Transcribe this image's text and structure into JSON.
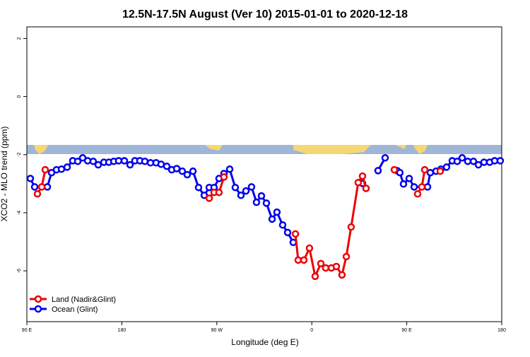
{
  "chart_data": {
    "type": "line",
    "title": "12.5N-17.5N August (Ver 10)   2015-01-01 to 2020-12-18",
    "x_label": "Longitude (deg E)",
    "y_label": "XCO2 - MLO trend (ppm)",
    "xlim": [
      90,
      540
    ],
    "xticks": [
      {
        "value": 90,
        "label": "90 E"
      },
      180,
      {
        "value": 270,
        "label": "90 W"
      },
      {
        "value": 360,
        "label": "0"
      },
      {
        "value": 450,
        "label": "90 E"
      },
      {
        "value": 540,
        "label": "180"
      }
    ],
    "ylim": [
      -7.75,
      2.4
    ],
    "yticks": [
      -6,
      -4,
      -2,
      0,
      2
    ],
    "legend": "bottom-left",
    "series": [
      {
        "name": "Ocean (Glint)",
        "color": "#0000ee",
        "x": [
          93.3,
          97.4,
          109.4,
          113.4,
          118.1,
          122.8,
          128.2,
          133.5,
          138.2,
          142.9,
          147.6,
          152.9,
          157.6,
          163.0,
          167.7,
          172.4,
          177.0,
          182.4,
          187.8,
          192.4,
          197.1,
          201.8,
          207.2,
          212.5,
          217.2,
          222.6,
          227.3,
          232.0,
          237.3,
          242.0,
          247.4,
          252.7,
          258.1,
          262.8,
          267.4,
          272.1,
          276.8,
          282.2,
          287.5,
          292.9,
          297.6,
          302.9,
          307.6,
          312.3,
          317.0,
          322.4,
          327.0,
          332.4,
          337.1,
          342.4,
          null,
          408.1,
          411.4,
          null,
          422.8,
          429.5,
          null,
          440.9,
          443.5,
          446.9,
          452.3,
          457.0,
          469.7,
          472.3,
          477.7,
          482.4,
          487.7,
          493.1,
          497.8,
          502.5,
          507.8,
          513.2,
          517.9,
          523.2,
          528.6,
          533.3,
          538.6
        ],
        "values": [
          -2.82,
          -3.11,
          -3.11,
          -2.62,
          -2.52,
          -2.5,
          -2.43,
          -2.21,
          -2.23,
          -2.11,
          -2.21,
          -2.23,
          -2.35,
          -2.26,
          -2.26,
          -2.23,
          -2.21,
          -2.21,
          -2.35,
          -2.21,
          -2.21,
          -2.23,
          -2.28,
          -2.28,
          -2.33,
          -2.4,
          -2.52,
          -2.48,
          -2.57,
          -2.69,
          -2.57,
          -3.13,
          -3.4,
          -3.13,
          -3.13,
          -2.82,
          -2.65,
          -2.5,
          -3.13,
          -3.4,
          -3.25,
          -3.11,
          -3.64,
          -3.42,
          -3.67,
          -4.22,
          -3.98,
          -4.42,
          -4.68,
          -5.02,
          null,
          -2.99,
          -3.16,
          null,
          -2.55,
          -2.11,
          null,
          -2.55,
          -2.62,
          -3.01,
          -2.82,
          -3.11,
          -3.11,
          -2.62,
          -2.57,
          -2.5,
          -2.43,
          -2.21,
          -2.23,
          -2.11,
          -2.23,
          -2.23,
          -2.35,
          -2.26,
          -2.26,
          -2.21,
          -2.21
        ]
      },
      {
        "name": "Land (Nadir&Glint)",
        "color": "#ee0000",
        "x": [
          100.0,
          104.1,
          107.4,
          null,
          262.8,
          267.4,
          272.1,
          276.8,
          null,
          344.5,
          347.1,
          352.5,
          357.8,
          363.2,
          368.6,
          373.2,
          378.6,
          383.3,
          388.6,
          392.7,
          397.3,
          404.0,
          408.1,
          411.4,
          null,
          438.2,
          null,
          460.3,
          464.3,
          467.0,
          null,
          481.7
        ],
        "values": [
          -3.35,
          -3.11,
          -2.52,
          null,
          -3.5,
          -3.3,
          -3.3,
          -2.77,
          null,
          -4.73,
          -5.63,
          -5.63,
          -5.22,
          -6.19,
          -5.75,
          -5.9,
          -5.9,
          -5.85,
          -6.14,
          -5.51,
          -4.49,
          -2.96,
          -2.74,
          -3.16,
          null,
          -2.52,
          null,
          -3.35,
          -3.11,
          -2.52,
          null,
          -2.57
        ]
      }
    ]
  }
}
